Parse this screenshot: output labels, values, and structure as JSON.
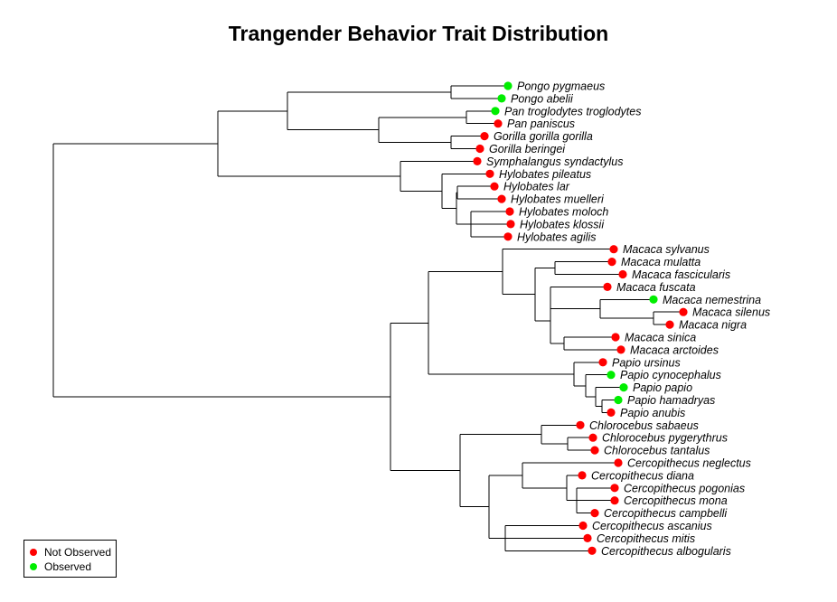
{
  "title": "Trangender Behavior Trait Distribution",
  "colors": {
    "not_observed": "#ff0000",
    "observed": "#00ee00",
    "line": "#000000"
  },
  "legend": [
    {
      "label": "Not Observed",
      "state": "not_observed"
    },
    {
      "label": "Observed",
      "state": "observed"
    }
  ],
  "taxa": [
    {
      "name": "Pongo pygmaeus",
      "state": "observed"
    },
    {
      "name": "Pongo abelii",
      "state": "observed"
    },
    {
      "name": "Pan troglodytes troglodytes",
      "state": "observed"
    },
    {
      "name": "Pan paniscus",
      "state": "not_observed"
    },
    {
      "name": "Gorilla gorilla gorilla",
      "state": "not_observed"
    },
    {
      "name": "Gorilla beringei",
      "state": "not_observed"
    },
    {
      "name": "Symphalangus syndactylus",
      "state": "not_observed"
    },
    {
      "name": "Hylobates pileatus",
      "state": "not_observed"
    },
    {
      "name": "Hylobates lar",
      "state": "not_observed"
    },
    {
      "name": "Hylobates muelleri",
      "state": "not_observed"
    },
    {
      "name": "Hylobates moloch",
      "state": "not_observed"
    },
    {
      "name": "Hylobates klossii",
      "state": "not_observed"
    },
    {
      "name": "Hylobates agilis",
      "state": "not_observed"
    },
    {
      "name": "Macaca sylvanus",
      "state": "not_observed"
    },
    {
      "name": "Macaca mulatta",
      "state": "not_observed"
    },
    {
      "name": "Macaca fascicularis",
      "state": "not_observed"
    },
    {
      "name": "Macaca fuscata",
      "state": "not_observed"
    },
    {
      "name": "Macaca nemestrina",
      "state": "observed"
    },
    {
      "name": "Macaca silenus",
      "state": "not_observed"
    },
    {
      "name": "Macaca nigra",
      "state": "not_observed"
    },
    {
      "name": "Macaca sinica",
      "state": "not_observed"
    },
    {
      "name": "Macaca arctoides",
      "state": "not_observed"
    },
    {
      "name": "Papio ursinus",
      "state": "not_observed"
    },
    {
      "name": "Papio cynocephalus",
      "state": "observed"
    },
    {
      "name": "Papio papio",
      "state": "observed"
    },
    {
      "name": "Papio hamadryas",
      "state": "observed"
    },
    {
      "name": "Papio anubis",
      "state": "not_observed"
    },
    {
      "name": "Chlorocebus sabaeus",
      "state": "not_observed"
    },
    {
      "name": "Chlorocebus pygerythrus",
      "state": "not_observed"
    },
    {
      "name": "Chlorocebus tantalus",
      "state": "not_observed"
    },
    {
      "name": "Cercopithecus neglectus",
      "state": "not_observed"
    },
    {
      "name": "Cercopithecus diana",
      "state": "not_observed"
    },
    {
      "name": "Cercopithecus pogonias",
      "state": "not_observed"
    },
    {
      "name": "Cercopithecus mona",
      "state": "not_observed"
    },
    {
      "name": "Cercopithecus campbelli",
      "state": "not_observed"
    },
    {
      "name": "Cercopithecus ascanius",
      "state": "not_observed"
    },
    {
      "name": "Cercopithecus mitis",
      "state": "not_observed"
    },
    {
      "name": "Cercopithecus albogularis",
      "state": "not_observed"
    }
  ]
}
